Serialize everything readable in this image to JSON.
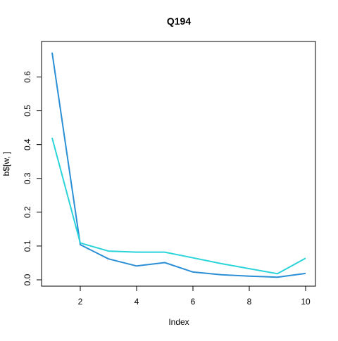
{
  "chart_data": {
    "type": "line",
    "title": "Q194",
    "xlabel": "Index",
    "ylabel": "b$[w, ]",
    "xlim": [
      1,
      10
    ],
    "ylim": [
      0,
      0.68
    ],
    "x": [
      1,
      2,
      3,
      4,
      5,
      6,
      7,
      8,
      9,
      10
    ],
    "x_ticks": [
      2,
      4,
      6,
      8,
      10
    ],
    "y_ticks": [
      0.0,
      0.1,
      0.2,
      0.3,
      0.4,
      0.5,
      0.6
    ],
    "x_tick_labels": [
      "2",
      "4",
      "6",
      "8",
      "10"
    ],
    "y_tick_labels": [
      "0.0",
      "0.1",
      "0.2",
      "0.3",
      "0.4",
      "0.5",
      "0.6"
    ],
    "grid": false,
    "legend": "none",
    "series": [
      {
        "name": "series-1",
        "color": "#2b8fd6",
        "values": [
          0.672,
          0.104,
          0.062,
          0.041,
          0.051,
          0.023,
          0.015,
          0.011,
          0.008,
          0.019
        ]
      },
      {
        "name": "series-2",
        "color": "#2ad4da",
        "values": [
          0.42,
          0.109,
          0.085,
          0.082,
          0.082,
          0.065,
          0.048,
          0.033,
          0.018,
          0.064
        ]
      }
    ]
  }
}
